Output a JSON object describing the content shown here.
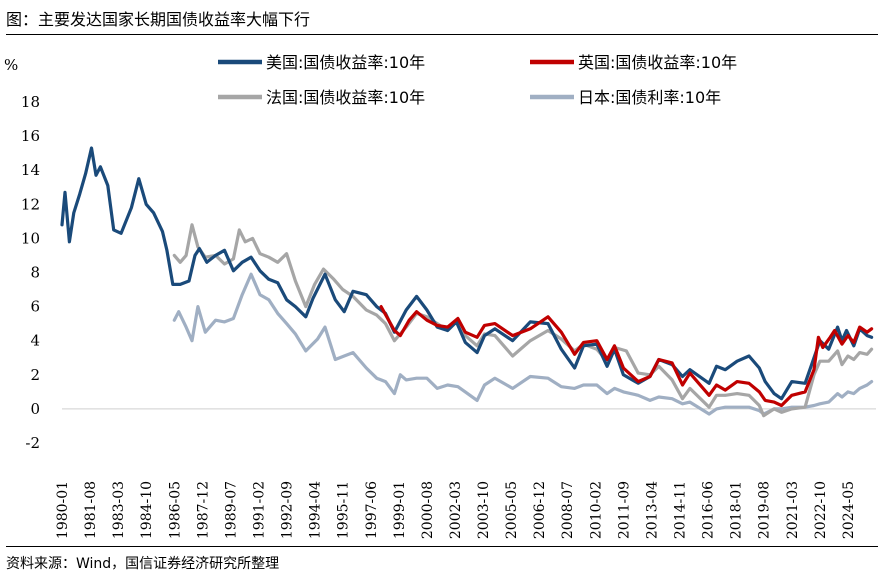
{
  "title": "图：主要发达国家长期国债收益率大幅下行",
  "source": "资料来源：Wind，国信证券经济研究所整理",
  "chart_data": {
    "type": "line",
    "ylabel": "%",
    "ylim": [
      -2,
      18
    ],
    "yticks": [
      -2,
      0,
      2,
      4,
      6,
      8,
      10,
      12,
      14,
      16,
      18
    ],
    "xlim": [
      "1980-01",
      "2025-12"
    ],
    "xticks": [
      "1980-01",
      "1981-08",
      "1983-03",
      "1984-10",
      "1986-05",
      "1987-12",
      "1989-07",
      "1991-02",
      "1992-09",
      "1994-04",
      "1995-11",
      "1997-06",
      "1999-01",
      "2000-08",
      "2002-03",
      "2003-10",
      "2005-05",
      "2006-12",
      "2008-07",
      "2010-02",
      "2011-09",
      "2013-04",
      "2014-11",
      "2016-06",
      "2018-01",
      "2019-08",
      "2021-03",
      "2022-10",
      "2024-05"
    ],
    "grid": false,
    "legend": "top",
    "series": [
      {
        "name": "美国:国债收益率:10年",
        "color": "#1a4a7a",
        "points": [
          [
            "1980-01",
            10.8
          ],
          [
            "1980-03",
            12.7
          ],
          [
            "1980-06",
            9.8
          ],
          [
            "1980-09",
            11.5
          ],
          [
            "1981-01",
            12.6
          ],
          [
            "1981-05",
            13.8
          ],
          [
            "1981-09",
            15.3
          ],
          [
            "1981-12",
            13.7
          ],
          [
            "1982-03",
            14.2
          ],
          [
            "1982-08",
            13.1
          ],
          [
            "1982-12",
            10.5
          ],
          [
            "1983-05",
            10.3
          ],
          [
            "1983-12",
            11.8
          ],
          [
            "1984-05",
            13.5
          ],
          [
            "1984-10",
            12.0
          ],
          [
            "1985-03",
            11.5
          ],
          [
            "1985-09",
            10.4
          ],
          [
            "1985-12",
            9.3
          ],
          [
            "1986-04",
            7.3
          ],
          [
            "1986-09",
            7.3
          ],
          [
            "1987-03",
            7.5
          ],
          [
            "1987-07",
            9.0
          ],
          [
            "1987-10",
            9.4
          ],
          [
            "1988-03",
            8.6
          ],
          [
            "1988-09",
            9.0
          ],
          [
            "1989-03",
            9.3
          ],
          [
            "1989-09",
            8.1
          ],
          [
            "1990-03",
            8.6
          ],
          [
            "1990-09",
            8.9
          ],
          [
            "1991-03",
            8.1
          ],
          [
            "1991-09",
            7.6
          ],
          [
            "1992-03",
            7.4
          ],
          [
            "1992-09",
            6.4
          ],
          [
            "1993-03",
            6.0
          ],
          [
            "1993-10",
            5.4
          ],
          [
            "1994-03",
            6.5
          ],
          [
            "1994-11",
            7.9
          ],
          [
            "1995-06",
            6.4
          ],
          [
            "1995-12",
            5.7
          ],
          [
            "1996-06",
            6.9
          ],
          [
            "1997-03",
            6.7
          ],
          [
            "1997-10",
            6.0
          ],
          [
            "1998-04",
            5.6
          ],
          [
            "1998-10",
            4.5
          ],
          [
            "1999-06",
            5.8
          ],
          [
            "2000-01",
            6.6
          ],
          [
            "2000-08",
            5.8
          ],
          [
            "2001-03",
            4.8
          ],
          [
            "2001-10",
            4.6
          ],
          [
            "2002-04",
            5.1
          ],
          [
            "2002-10",
            3.9
          ],
          [
            "2003-06",
            3.3
          ],
          [
            "2003-11",
            4.3
          ],
          [
            "2004-06",
            4.7
          ],
          [
            "2005-06",
            4.0
          ],
          [
            "2006-06",
            5.1
          ],
          [
            "2007-06",
            5.0
          ],
          [
            "2008-03",
            3.5
          ],
          [
            "2008-12",
            2.4
          ],
          [
            "2009-06",
            3.7
          ],
          [
            "2010-03",
            3.8
          ],
          [
            "2010-10",
            2.5
          ],
          [
            "2011-03",
            3.5
          ],
          [
            "2011-09",
            2.0
          ],
          [
            "2012-07",
            1.5
          ],
          [
            "2013-03",
            1.9
          ],
          [
            "2013-09",
            2.9
          ],
          [
            "2014-06",
            2.6
          ],
          [
            "2015-01",
            1.9
          ],
          [
            "2015-06",
            2.3
          ],
          [
            "2016-07",
            1.5
          ],
          [
            "2016-12",
            2.5
          ],
          [
            "2017-06",
            2.3
          ],
          [
            "2018-02",
            2.8
          ],
          [
            "2018-10",
            3.1
          ],
          [
            "2019-05",
            2.4
          ],
          [
            "2019-09",
            1.6
          ],
          [
            "2020-03",
            0.9
          ],
          [
            "2020-08",
            0.6
          ],
          [
            "2021-03",
            1.6
          ],
          [
            "2021-12",
            1.5
          ],
          [
            "2022-06",
            3.0
          ],
          [
            "2022-10",
            4.0
          ],
          [
            "2023-04",
            3.5
          ],
          [
            "2023-10",
            4.8
          ],
          [
            "2024-01",
            4.0
          ],
          [
            "2024-04",
            4.6
          ],
          [
            "2024-09",
            3.7
          ],
          [
            "2025-01",
            4.7
          ],
          [
            "2025-06",
            4.3
          ],
          [
            "2025-09",
            4.2
          ]
        ]
      },
      {
        "name": "英国:国债收益率:10年",
        "color": "#c00000",
        "points": [
          [
            "1998-01",
            6.0
          ],
          [
            "1998-10",
            4.6
          ],
          [
            "1999-02",
            4.3
          ],
          [
            "1999-08",
            5.2
          ],
          [
            "2000-01",
            5.7
          ],
          [
            "2000-08",
            5.2
          ],
          [
            "2001-03",
            4.9
          ],
          [
            "2001-10",
            4.8
          ],
          [
            "2002-05",
            5.3
          ],
          [
            "2002-10",
            4.5
          ],
          [
            "2003-06",
            4.2
          ],
          [
            "2003-11",
            4.9
          ],
          [
            "2004-06",
            5.0
          ],
          [
            "2005-06",
            4.3
          ],
          [
            "2006-06",
            4.7
          ],
          [
            "2007-06",
            5.4
          ],
          [
            "2008-03",
            4.5
          ],
          [
            "2008-12",
            3.2
          ],
          [
            "2009-06",
            3.9
          ],
          [
            "2010-03",
            4.0
          ],
          [
            "2010-10",
            2.9
          ],
          [
            "2011-03",
            3.7
          ],
          [
            "2011-09",
            2.4
          ],
          [
            "2012-07",
            1.6
          ],
          [
            "2013-03",
            1.9
          ],
          [
            "2013-09",
            2.9
          ],
          [
            "2014-06",
            2.7
          ],
          [
            "2015-01",
            1.4
          ],
          [
            "2015-06",
            2.1
          ],
          [
            "2016-07",
            0.8
          ],
          [
            "2016-12",
            1.4
          ],
          [
            "2017-06",
            1.1
          ],
          [
            "2018-02",
            1.6
          ],
          [
            "2018-10",
            1.5
          ],
          [
            "2019-05",
            1.0
          ],
          [
            "2019-09",
            0.5
          ],
          [
            "2020-03",
            0.4
          ],
          [
            "2020-08",
            0.2
          ],
          [
            "2021-03",
            0.8
          ],
          [
            "2021-12",
            1.0
          ],
          [
            "2022-06",
            2.3
          ],
          [
            "2022-09",
            4.2
          ],
          [
            "2022-12",
            3.6
          ],
          [
            "2023-05",
            4.2
          ],
          [
            "2023-08",
            4.6
          ],
          [
            "2024-01",
            3.8
          ],
          [
            "2024-05",
            4.3
          ],
          [
            "2024-09",
            3.9
          ],
          [
            "2025-01",
            4.8
          ],
          [
            "2025-06",
            4.5
          ],
          [
            "2025-09",
            4.7
          ]
        ]
      },
      {
        "name": "法国:国债收益率:10年",
        "color": "#a6a6a6",
        "points": [
          [
            "1986-05",
            9.0
          ],
          [
            "1986-09",
            8.6
          ],
          [
            "1987-01",
            9.0
          ],
          [
            "1987-05",
            10.8
          ],
          [
            "1987-09",
            9.5
          ],
          [
            "1988-02",
            8.9
          ],
          [
            "1988-09",
            9.0
          ],
          [
            "1989-03",
            8.5
          ],
          [
            "1989-09",
            8.8
          ],
          [
            "1990-01",
            10.5
          ],
          [
            "1990-05",
            9.8
          ],
          [
            "1990-10",
            10.0
          ],
          [
            "1991-03",
            9.1
          ],
          [
            "1991-09",
            8.9
          ],
          [
            "1992-03",
            8.6
          ],
          [
            "1992-09",
            9.1
          ],
          [
            "1993-03",
            7.5
          ],
          [
            "1993-10",
            6.0
          ],
          [
            "1994-04",
            7.3
          ],
          [
            "1994-10",
            8.2
          ],
          [
            "1995-05",
            7.6
          ],
          [
            "1995-11",
            7.0
          ],
          [
            "1996-06",
            6.6
          ],
          [
            "1997-03",
            5.8
          ],
          [
            "1997-10",
            5.5
          ],
          [
            "1998-04",
            5.0
          ],
          [
            "1998-10",
            4.0
          ],
          [
            "1999-06",
            4.8
          ],
          [
            "2000-01",
            5.6
          ],
          [
            "2000-08",
            5.4
          ],
          [
            "2001-03",
            5.0
          ],
          [
            "2001-10",
            4.6
          ],
          [
            "2002-05",
            5.2
          ],
          [
            "2002-10",
            4.3
          ],
          [
            "2003-06",
            3.7
          ],
          [
            "2003-11",
            4.4
          ],
          [
            "2004-06",
            4.3
          ],
          [
            "2005-06",
            3.1
          ],
          [
            "2006-06",
            4.0
          ],
          [
            "2007-06",
            4.6
          ],
          [
            "2008-03",
            4.1
          ],
          [
            "2008-12",
            3.4
          ],
          [
            "2009-06",
            3.8
          ],
          [
            "2010-03",
            3.5
          ],
          [
            "2010-10",
            2.8
          ],
          [
            "2011-03",
            3.6
          ],
          [
            "2011-11",
            3.4
          ],
          [
            "2012-07",
            2.1
          ],
          [
            "2013-03",
            2.0
          ],
          [
            "2013-09",
            2.5
          ],
          [
            "2014-06",
            1.7
          ],
          [
            "2015-01",
            0.6
          ],
          [
            "2015-06",
            1.2
          ],
          [
            "2016-07",
            0.1
          ],
          [
            "2016-12",
            0.8
          ],
          [
            "2017-06",
            0.8
          ],
          [
            "2018-02",
            0.9
          ],
          [
            "2018-10",
            0.8
          ],
          [
            "2019-05",
            0.2
          ],
          [
            "2019-08",
            -0.4
          ],
          [
            "2020-03",
            0.0
          ],
          [
            "2020-08",
            -0.2
          ],
          [
            "2021-03",
            0.0
          ],
          [
            "2021-12",
            0.1
          ],
          [
            "2022-06",
            2.0
          ],
          [
            "2022-10",
            2.8
          ],
          [
            "2023-04",
            2.8
          ],
          [
            "2023-10",
            3.4
          ],
          [
            "2024-01",
            2.6
          ],
          [
            "2024-05",
            3.1
          ],
          [
            "2024-09",
            2.9
          ],
          [
            "2025-01",
            3.3
          ],
          [
            "2025-06",
            3.2
          ],
          [
            "2025-09",
            3.5
          ]
        ]
      },
      {
        "name": "日本:国债利率:10年",
        "color": "#a0afc3",
        "points": [
          [
            "1986-05",
            5.2
          ],
          [
            "1986-08",
            5.7
          ],
          [
            "1987-01",
            4.8
          ],
          [
            "1987-05",
            4.0
          ],
          [
            "1987-09",
            6.0
          ],
          [
            "1988-02",
            4.5
          ],
          [
            "1988-09",
            5.2
          ],
          [
            "1989-03",
            5.1
          ],
          [
            "1989-09",
            5.3
          ],
          [
            "1990-03",
            6.7
          ],
          [
            "1990-09",
            7.9
          ],
          [
            "1991-03",
            6.7
          ],
          [
            "1991-09",
            6.4
          ],
          [
            "1992-03",
            5.6
          ],
          [
            "1992-09",
            5.0
          ],
          [
            "1993-03",
            4.4
          ],
          [
            "1993-10",
            3.4
          ],
          [
            "1994-06",
            4.1
          ],
          [
            "1994-11",
            4.8
          ],
          [
            "1995-06",
            2.9
          ],
          [
            "1995-12",
            3.1
          ],
          [
            "1996-06",
            3.3
          ],
          [
            "1997-03",
            2.4
          ],
          [
            "1997-10",
            1.8
          ],
          [
            "1998-04",
            1.6
          ],
          [
            "1998-10",
            0.9
          ],
          [
            "1999-02",
            2.0
          ],
          [
            "1999-06",
            1.7
          ],
          [
            "2000-01",
            1.8
          ],
          [
            "2000-08",
            1.8
          ],
          [
            "2001-03",
            1.2
          ],
          [
            "2001-10",
            1.4
          ],
          [
            "2002-05",
            1.3
          ],
          [
            "2002-10",
            1.0
          ],
          [
            "2003-06",
            0.5
          ],
          [
            "2003-11",
            1.4
          ],
          [
            "2004-06",
            1.8
          ],
          [
            "2005-06",
            1.2
          ],
          [
            "2006-06",
            1.9
          ],
          [
            "2007-06",
            1.8
          ],
          [
            "2008-03",
            1.3
          ],
          [
            "2008-12",
            1.2
          ],
          [
            "2009-06",
            1.4
          ],
          [
            "2010-03",
            1.4
          ],
          [
            "2010-10",
            0.9
          ],
          [
            "2011-03",
            1.2
          ],
          [
            "2011-09",
            1.0
          ],
          [
            "2012-07",
            0.8
          ],
          [
            "2013-03",
            0.5
          ],
          [
            "2013-09",
            0.7
          ],
          [
            "2014-06",
            0.6
          ],
          [
            "2015-01",
            0.3
          ],
          [
            "2015-06",
            0.4
          ],
          [
            "2016-07",
            -0.3
          ],
          [
            "2016-12",
            0.0
          ],
          [
            "2017-06",
            0.1
          ],
          [
            "2018-02",
            0.1
          ],
          [
            "2018-10",
            0.1
          ],
          [
            "2019-05",
            -0.1
          ],
          [
            "2019-08",
            -0.3
          ],
          [
            "2020-03",
            0.0
          ],
          [
            "2020-08",
            0.0
          ],
          [
            "2021-03",
            0.1
          ],
          [
            "2021-12",
            0.1
          ],
          [
            "2022-06",
            0.2
          ],
          [
            "2022-10",
            0.3
          ],
          [
            "2023-04",
            0.4
          ],
          [
            "2023-10",
            0.9
          ],
          [
            "2024-01",
            0.7
          ],
          [
            "2024-05",
            1.0
          ],
          [
            "2024-09",
            0.9
          ],
          [
            "2025-01",
            1.2
          ],
          [
            "2025-06",
            1.4
          ],
          [
            "2025-09",
            1.6
          ]
        ]
      }
    ]
  }
}
